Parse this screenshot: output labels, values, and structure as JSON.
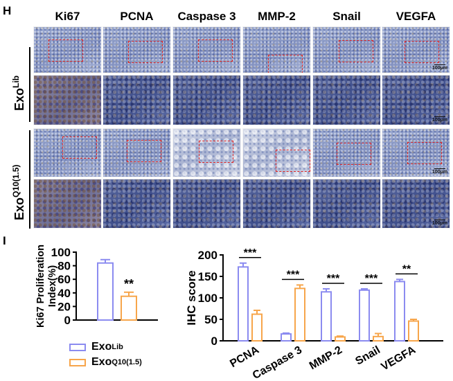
{
  "panel_h": {
    "letter": "H",
    "columns": [
      "Ki67",
      "PCNA",
      "Caspase 3",
      "MMP-2",
      "Snail",
      "VEGFA"
    ],
    "row_groups": [
      {
        "base": "Exo",
        "sup": "Lib"
      },
      {
        "base": "Exo",
        "sup": "Q10(1.5)"
      }
    ],
    "scale_bar_label": "100μm"
  },
  "panel_i": {
    "letter": "I"
  },
  "legend": {
    "items": [
      {
        "base": "Exo",
        "sup": "Lib",
        "color": "#8b8bf0"
      },
      {
        "base": "Exo",
        "sup": "Q10(1.5)",
        "color": "#f7a54a"
      }
    ]
  },
  "colors": {
    "exo_lib": "#8b8bf0",
    "exo_q10": "#f7a54a"
  },
  "chart_data": [
    {
      "type": "bar",
      "ylabel": "Ki67 Proliferation Index(%)",
      "ylim": [
        0,
        100
      ],
      "yticks": [
        0,
        20,
        40,
        60,
        80,
        100
      ],
      "series": [
        {
          "name": "ExoLib",
          "values": [
            84
          ],
          "errors": [
            5
          ]
        },
        {
          "name": "ExoQ10(1.5)",
          "values": [
            35
          ],
          "errors": [
            6
          ]
        }
      ],
      "annotations": [
        "**"
      ]
    },
    {
      "type": "bar",
      "ylabel": "IHC score",
      "categories": [
        "PCNA",
        "Caspase 3",
        "MMP-2",
        "Snail",
        "VEGFA"
      ],
      "ylim": [
        0,
        200
      ],
      "yticks": [
        0,
        50,
        100,
        150,
        200
      ],
      "series": [
        {
          "name": "ExoLib",
          "values": [
            172,
            16,
            114,
            118,
            138
          ],
          "errors": [
            9,
            2,
            7,
            3,
            5
          ]
        },
        {
          "name": "ExoQ10(1.5)",
          "values": [
            62,
            122,
            9,
            10,
            46
          ],
          "errors": [
            9,
            8,
            2,
            7,
            4
          ]
        }
      ],
      "significance": [
        "***",
        "***",
        "***",
        "***",
        "**"
      ]
    }
  ]
}
